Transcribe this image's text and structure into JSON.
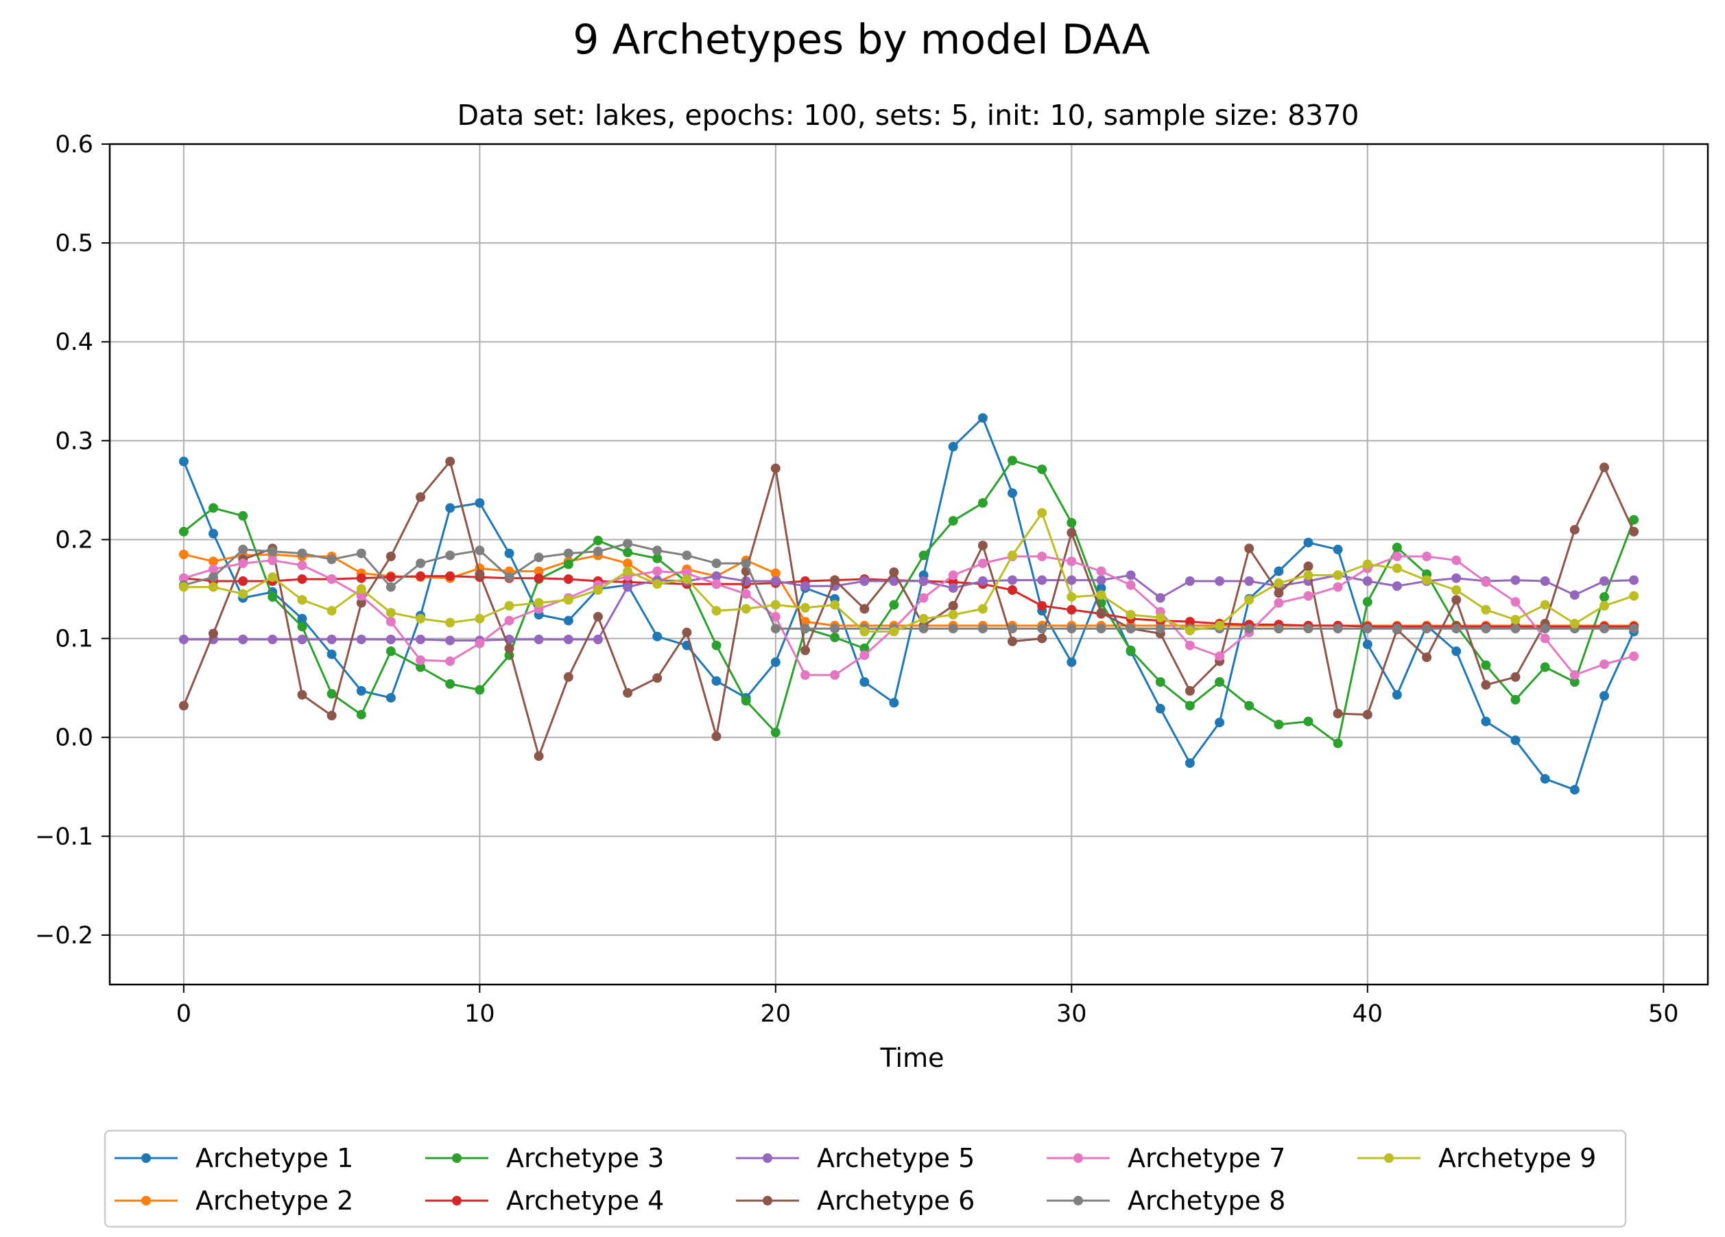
{
  "title": "9 Archetypes by model DAA",
  "subtitle": "Data set: lakes, epochs: 100, sets: 5, init: 10, sample size: 8370",
  "chart_data": {
    "type": "line",
    "title": "9 Archetypes by model DAA",
    "subtitle": "Data set: lakes, epochs: 100, sets: 5, init: 10, sample size: 8370",
    "xlabel": "Time",
    "ylabel": "",
    "xlim": [
      -2.5,
      51.5
    ],
    "ylim": [
      -0.25,
      0.6
    ],
    "xticks": [
      0,
      10,
      20,
      30,
      40,
      50
    ],
    "xtick_labels": [
      "0",
      "10",
      "20",
      "30",
      "40",
      "50"
    ],
    "yticks": [
      -0.2,
      -0.1,
      0.0,
      0.1,
      0.2,
      0.3,
      0.4,
      0.5,
      0.6
    ],
    "ytick_labels": [
      "−0.2",
      "−0.1",
      "0.0",
      "0.1",
      "0.2",
      "0.3",
      "0.4",
      "0.5",
      "0.6"
    ],
    "grid": true,
    "legend_position": "bottom-center",
    "legend_columns": 5,
    "x": [
      0,
      1,
      2,
      3,
      4,
      5,
      6,
      7,
      8,
      9,
      10,
      11,
      12,
      13,
      14,
      15,
      16,
      17,
      18,
      19,
      20,
      21,
      22,
      23,
      24,
      25,
      26,
      27,
      28,
      29,
      30,
      31,
      32,
      33,
      34,
      35,
      36,
      37,
      38,
      39,
      40,
      41,
      42,
      43,
      44,
      45,
      46,
      47,
      48,
      49
    ],
    "series": [
      {
        "name": "Archetype 1",
        "color": "#1f77b4",
        "values": [
          0.279,
          0.206,
          0.141,
          0.147,
          0.12,
          0.084,
          0.047,
          0.04,
          0.123,
          0.232,
          0.237,
          0.186,
          0.124,
          0.118,
          0.15,
          0.154,
          0.102,
          0.093,
          0.057,
          0.04,
          0.076,
          0.151,
          0.14,
          0.056,
          0.035,
          0.164,
          0.294,
          0.323,
          0.247,
          0.128,
          0.076,
          0.151,
          0.087,
          0.029,
          -0.026,
          0.015,
          0.14,
          0.168,
          0.197,
          0.19,
          0.094,
          0.043,
          0.113,
          0.087,
          0.016,
          -0.003,
          -0.042,
          -0.053,
          0.042,
          0.107
        ]
      },
      {
        "name": "Archetype 2",
        "color": "#ff7f0e",
        "values": [
          0.185,
          0.178,
          0.184,
          0.185,
          0.183,
          0.183,
          0.166,
          0.163,
          0.162,
          0.161,
          0.171,
          0.168,
          0.168,
          0.178,
          0.184,
          0.176,
          0.157,
          0.17,
          0.163,
          0.179,
          0.166,
          0.117,
          0.113,
          0.113,
          0.113,
          0.113,
          0.113,
          0.113,
          0.113,
          0.113,
          0.113,
          0.113,
          0.113,
          0.113,
          0.113,
          0.113,
          0.113,
          0.113,
          0.113,
          0.113,
          0.113,
          0.113,
          0.113,
          0.113,
          0.113,
          0.113,
          0.113,
          0.113,
          0.113,
          0.113
        ]
      },
      {
        "name": "Archetype 3",
        "color": "#2ca02c",
        "values": [
          0.208,
          0.232,
          0.224,
          0.142,
          0.112,
          0.044,
          0.023,
          0.087,
          0.071,
          0.054,
          0.048,
          0.083,
          0.16,
          0.175,
          0.199,
          0.187,
          0.181,
          0.157,
          0.093,
          0.037,
          0.005,
          0.11,
          0.101,
          0.09,
          0.134,
          0.184,
          0.219,
          0.237,
          0.28,
          0.271,
          0.217,
          0.136,
          0.088,
          0.056,
          0.032,
          0.056,
          0.032,
          0.013,
          0.016,
          -0.006,
          0.137,
          0.192,
          0.165,
          0.113,
          0.073,
          0.038,
          0.071,
          0.056,
          0.142,
          0.22
        ]
      },
      {
        "name": "Archetype 4",
        "color": "#d62728",
        "values": [
          0.161,
          0.158,
          0.158,
          0.158,
          0.16,
          0.16,
          0.161,
          0.162,
          0.163,
          0.163,
          0.162,
          0.161,
          0.161,
          0.16,
          0.158,
          0.157,
          0.156,
          0.155,
          0.155,
          0.155,
          0.156,
          0.158,
          0.159,
          0.16,
          0.159,
          0.158,
          0.157,
          0.155,
          0.149,
          0.133,
          0.129,
          0.125,
          0.12,
          0.118,
          0.117,
          0.115,
          0.114,
          0.114,
          0.113,
          0.113,
          0.112,
          0.112,
          0.112,
          0.112,
          0.112,
          0.112,
          0.112,
          0.112,
          0.112,
          0.112
        ]
      },
      {
        "name": "Archetype 5",
        "color": "#9467bd",
        "values": [
          0.099,
          0.099,
          0.099,
          0.099,
          0.099,
          0.099,
          0.099,
          0.099,
          0.099,
          0.098,
          0.098,
          0.099,
          0.099,
          0.099,
          0.099,
          0.152,
          0.159,
          0.158,
          0.163,
          0.158,
          0.158,
          0.153,
          0.153,
          0.158,
          0.158,
          0.158,
          0.151,
          0.158,
          0.159,
          0.159,
          0.159,
          0.159,
          0.164,
          0.141,
          0.158,
          0.158,
          0.158,
          0.153,
          0.158,
          0.164,
          0.158,
          0.153,
          0.158,
          0.161,
          0.158,
          0.159,
          0.158,
          0.144,
          0.158,
          0.159
        ]
      },
      {
        "name": "Archetype 6",
        "color": "#8c564b",
        "values": [
          0.032,
          0.105,
          0.18,
          0.191,
          0.043,
          0.022,
          0.136,
          0.183,
          0.243,
          0.279,
          0.165,
          0.09,
          -0.019,
          0.061,
          0.122,
          0.045,
          0.06,
          0.106,
          0.001,
          0.168,
          0.272,
          0.088,
          0.159,
          0.13,
          0.167,
          0.113,
          0.133,
          0.194,
          0.097,
          0.1,
          0.207,
          0.126,
          0.11,
          0.105,
          0.047,
          0.077,
          0.191,
          0.146,
          0.173,
          0.024,
          0.023,
          0.109,
          0.081,
          0.139,
          0.053,
          0.061,
          0.115,
          0.21,
          0.273,
          0.208
        ]
      },
      {
        "name": "Archetype 7",
        "color": "#e377c2",
        "values": [
          0.161,
          0.17,
          0.176,
          0.179,
          0.174,
          0.16,
          0.143,
          0.117,
          0.078,
          0.077,
          0.095,
          0.118,
          0.13,
          0.141,
          0.154,
          0.163,
          0.168,
          0.166,
          0.155,
          0.145,
          0.122,
          0.063,
          0.063,
          0.083,
          0.11,
          0.141,
          0.164,
          0.176,
          0.183,
          0.183,
          0.178,
          0.168,
          0.154,
          0.127,
          0.093,
          0.082,
          0.106,
          0.136,
          0.143,
          0.152,
          0.171,
          0.183,
          0.183,
          0.179,
          0.157,
          0.137,
          0.1,
          0.063,
          0.074,
          0.082
        ]
      },
      {
        "name": "Archetype 8",
        "color": "#7f7f7f",
        "values": [
          0.154,
          0.162,
          0.19,
          0.188,
          0.186,
          0.18,
          0.186,
          0.152,
          0.176,
          0.184,
          0.189,
          0.162,
          0.182,
          0.186,
          0.188,
          0.196,
          0.189,
          0.184,
          0.176,
          0.176,
          0.11,
          0.11,
          0.11,
          0.11,
          0.11,
          0.11,
          0.11,
          0.11,
          0.11,
          0.11,
          0.11,
          0.11,
          0.11,
          0.11,
          0.11,
          0.11,
          0.11,
          0.11,
          0.11,
          0.11,
          0.11,
          0.11,
          0.11,
          0.11,
          0.11,
          0.11,
          0.11,
          0.11,
          0.11,
          0.11
        ]
      },
      {
        "name": "Archetype 9",
        "color": "#bcbd22",
        "values": [
          0.152,
          0.152,
          0.145,
          0.162,
          0.139,
          0.128,
          0.15,
          0.126,
          0.12,
          0.116,
          0.12,
          0.133,
          0.136,
          0.139,
          0.149,
          0.168,
          0.155,
          0.16,
          0.128,
          0.13,
          0.134,
          0.131,
          0.134,
          0.107,
          0.107,
          0.12,
          0.124,
          0.13,
          0.184,
          0.227,
          0.142,
          0.144,
          0.124,
          0.121,
          0.108,
          0.113,
          0.139,
          0.156,
          0.164,
          0.164,
          0.175,
          0.171,
          0.159,
          0.149,
          0.129,
          0.119,
          0.134,
          0.115,
          0.133,
          0.143
        ]
      }
    ]
  }
}
